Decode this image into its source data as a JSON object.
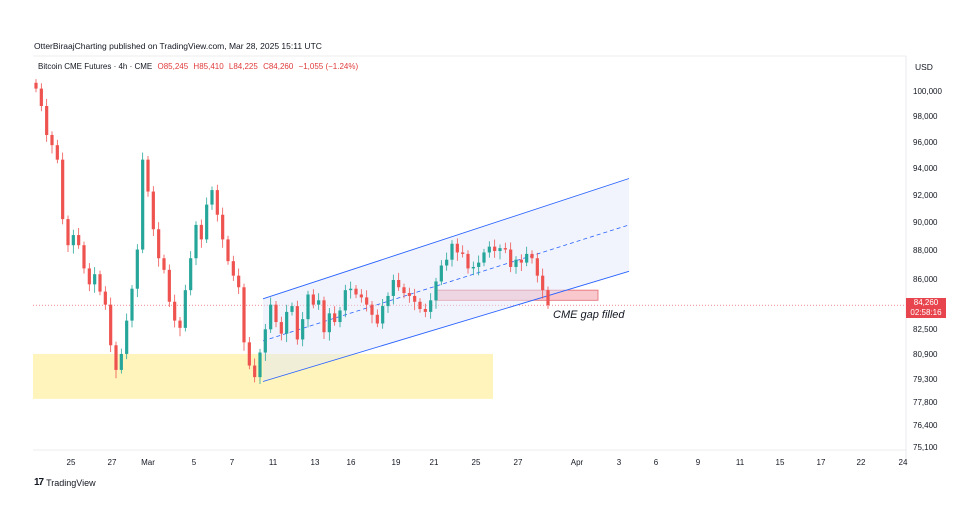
{
  "header": {
    "published": "OtterBiraajCharting published on TradingView.com, Mar 28, 2025 15:11 UTC"
  },
  "legend": {
    "symbol": "Bitcoin CME Futures · 4h · CME",
    "open": "O85,245",
    "high": "H85,410",
    "low": "L84,225",
    "close": "C84,260",
    "change": "−1,055 (−1.24%)"
  },
  "axis": {
    "currency": "USD"
  },
  "price_tag": {
    "price": "84,260",
    "countdown": "02:58:16"
  },
  "annotation": {
    "text": "CME gap filled"
  },
  "footer": {
    "brand": "TradingView",
    "logo": "17"
  },
  "colors": {
    "up": "#26a69a",
    "down": "#ef5350",
    "channel": "#2962ff",
    "highlight": "#fff3b0",
    "gap": "#f8c8cc"
  },
  "chart_data": {
    "type": "candlestick",
    "symbol": "Bitcoin CME Futures",
    "interval": "4h",
    "y_ticks": [
      "100,000",
      "98,000",
      "96,000",
      "94,000",
      "92,000",
      "90,000",
      "88,000",
      "86,000",
      "84,260",
      "82,500",
      "80,900",
      "79,300",
      "77,800",
      "76,400",
      "75,100"
    ],
    "x_ticks": [
      "25",
      "27",
      "Mar",
      "5",
      "7",
      "11",
      "13",
      "16",
      "19",
      "21",
      "25",
      "27",
      "Apr",
      "3",
      "6",
      "9",
      "11",
      "15",
      "17",
      "22",
      "24"
    ],
    "last_price": 84260,
    "closes": [
      99200,
      98000,
      96000,
      95300,
      94300,
      90200,
      88400,
      89100,
      88400,
      86800,
      85700,
      86400,
      85200,
      84300,
      81500,
      79800,
      80900,
      83200,
      85400,
      88100,
      94300,
      92100,
      89500,
      87500,
      86700,
      84500,
      83200,
      82700,
      85300,
      87500,
      89800,
      88800,
      91200,
      92200,
      90500,
      88800,
      87300,
      86300,
      85500,
      81700,
      80100,
      79300,
      81000,
      82600,
      84300,
      83100,
      82300,
      83800,
      84200,
      81900,
      83300,
      85000,
      84300,
      84600,
      82400,
      83700,
      83100,
      83900,
      85300,
      85400,
      85000,
      84800,
      84300,
      83600,
      83000,
      84200,
      84900,
      86000,
      85500,
      85100,
      84900,
      84500,
      84000,
      83800,
      84600,
      85900,
      87000,
      87400,
      88500,
      87900,
      87800,
      86800,
      86900,
      87200,
      87900,
      88300,
      88000,
      88200,
      88100,
      86900,
      87400,
      87200,
      87800,
      87500,
      86300,
      85300,
      84260
    ],
    "channel": {
      "upper": [
        84700,
        93000
      ],
      "lower": [
        79000,
        86600
      ],
      "mid": [
        81800,
        89800
      ]
    },
    "highlight_zone": {
      "from": 77800,
      "to": 80900
    },
    "gap_zone": {
      "from": 84600,
      "to": 85300
    },
    "annotation": "CME gap filled"
  }
}
